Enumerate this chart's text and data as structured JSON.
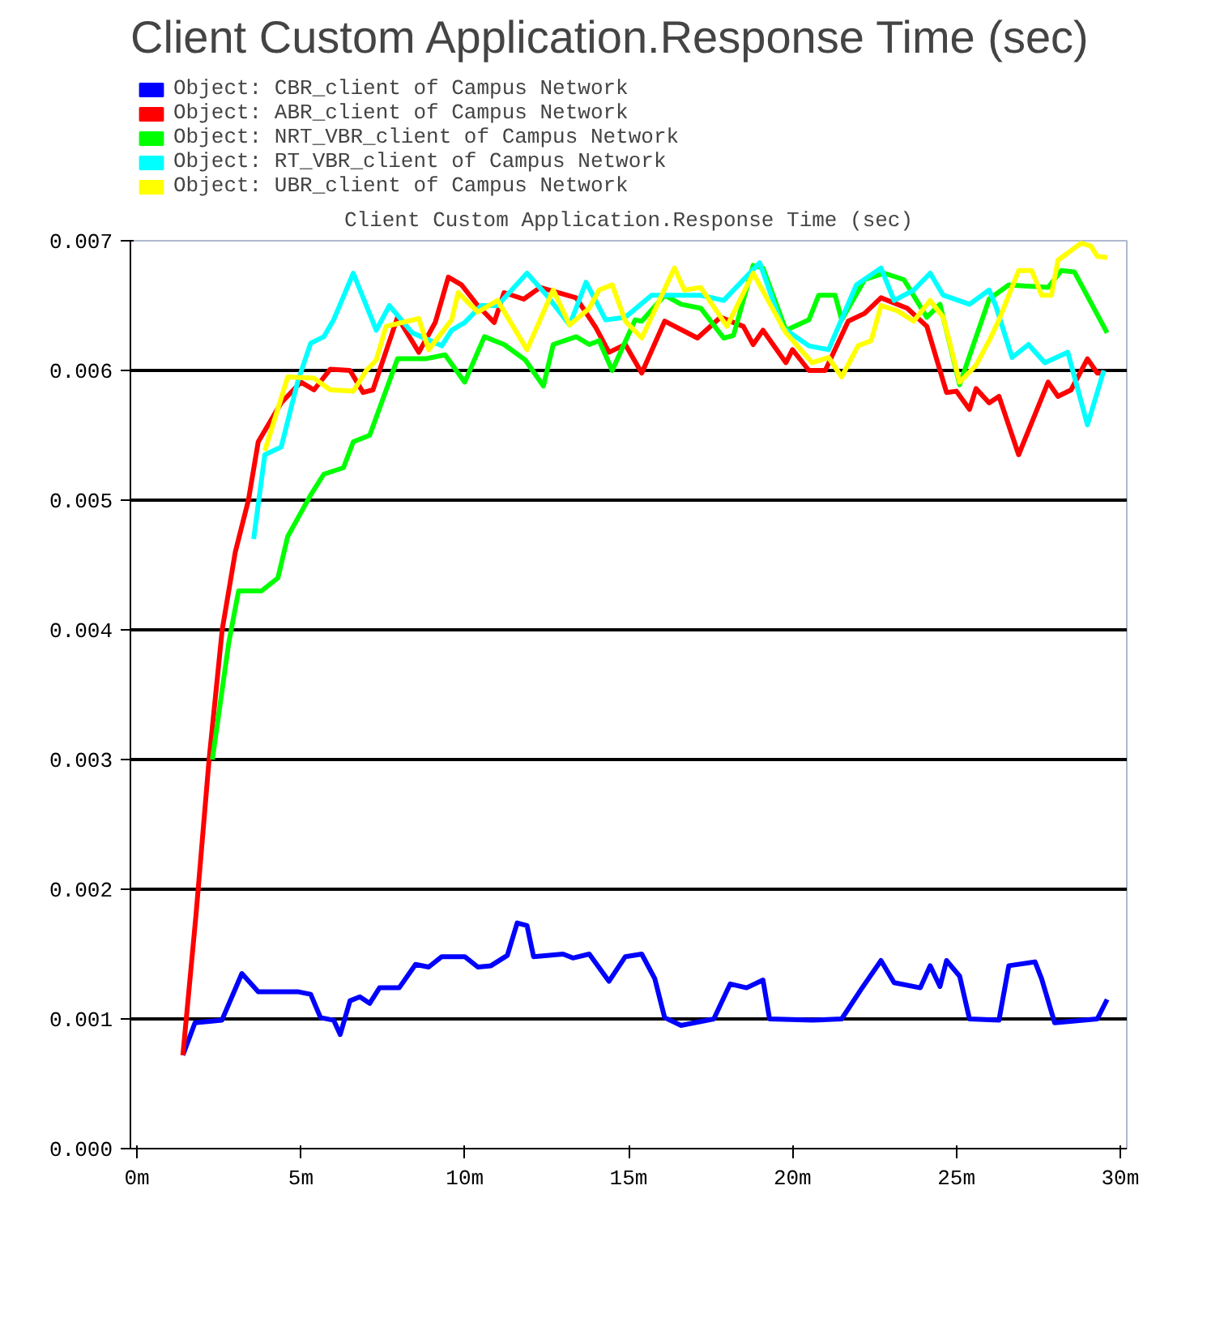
{
  "chart_data": {
    "type": "line",
    "title": "Client Custom Application.Response Time (sec)",
    "subtitle": "Client Custom Application.Response Time (sec)",
    "xlim": [
      -0.2,
      30.2
    ],
    "xticks": [
      {
        "value": 0,
        "label": "0m"
      },
      {
        "value": 5,
        "label": "5m"
      },
      {
        "value": 10,
        "label": "10m"
      },
      {
        "value": 15,
        "label": "15m"
      },
      {
        "value": 20,
        "label": "20m"
      },
      {
        "value": 25,
        "label": "25m"
      },
      {
        "value": 30,
        "label": "30m"
      }
    ],
    "ylim": [
      0,
      0.007
    ],
    "yticks": [
      {
        "value": 0,
        "label": "0.000"
      },
      {
        "value": 0.001,
        "label": "0.001"
      },
      {
        "value": 0.002,
        "label": "0.002"
      },
      {
        "value": 0.003,
        "label": "0.003"
      },
      {
        "value": 0.004,
        "label": "0.004"
      },
      {
        "value": 0.005,
        "label": "0.005"
      },
      {
        "value": 0.006,
        "label": "0.006"
      },
      {
        "value": 0.007,
        "label": "0.007"
      }
    ],
    "grid": "y",
    "legend": "top",
    "line_style": "solid",
    "series": [
      {
        "name": "Object: CBR_client of Campus Network",
        "color": "#0000ff",
        "x": [
          1.4,
          1.77,
          2.59,
          3.2,
          3.7,
          4.9,
          5.3,
          5.6,
          6.0,
          6.2,
          6.5,
          6.8,
          7.1,
          7.4,
          8.0,
          8.5,
          8.9,
          9.3,
          10.0,
          10.4,
          10.8,
          11.3,
          11.6,
          11.9,
          12.1,
          13.0,
          13.3,
          13.8,
          14.4,
          14.9,
          15.4,
          15.8,
          16.1,
          16.6,
          17.6,
          18.1,
          18.6,
          19.1,
          19.3,
          20.6,
          21.5,
          22.1,
          22.7,
          23.1,
          23.9,
          24.2,
          24.5,
          24.7,
          25.1,
          25.4,
          26.3,
          26.6,
          27.4,
          27.6,
          28.0,
          29.3,
          29.6
        ],
        "values": [
          0.00072,
          0.00097,
          0.00099,
          0.00135,
          0.00121,
          0.00121,
          0.00119,
          0.00101,
          0.00099,
          0.00088,
          0.00114,
          0.00117,
          0.00112,
          0.00124,
          0.00124,
          0.00142,
          0.0014,
          0.00148,
          0.00148,
          0.0014,
          0.00141,
          0.00149,
          0.00174,
          0.00172,
          0.00148,
          0.0015,
          0.00147,
          0.0015,
          0.00129,
          0.00148,
          0.0015,
          0.00131,
          0.00101,
          0.00095,
          0.001,
          0.00127,
          0.00124,
          0.0013,
          0.001,
          0.00099,
          0.001,
          0.00123,
          0.00145,
          0.00128,
          0.00124,
          0.00141,
          0.00125,
          0.00145,
          0.00133,
          0.001,
          0.00099,
          0.00141,
          0.00144,
          0.00131,
          0.00097,
          0.001,
          0.00115
        ]
      },
      {
        "name": "Object: ABR_client of Campus Network",
        "color": "#ff0000",
        "x": [
          1.4,
          1.8,
          2.2,
          2.6,
          3.0,
          3.4,
          3.7,
          4.4,
          5.0,
          5.4,
          5.9,
          6.5,
          6.9,
          7.2,
          7.95,
          8.6,
          9.1,
          9.5,
          9.9,
          10.4,
          10.9,
          11.2,
          11.8,
          12.3,
          13.4,
          14.0,
          14.4,
          14.9,
          15.4,
          16.1,
          17.1,
          17.8,
          18.5,
          18.8,
          19.1,
          19.8,
          20.0,
          20.5,
          21.0,
          21.7,
          22.2,
          22.7,
          23.5,
          24.1,
          24.7,
          25.0,
          25.4,
          25.6,
          26.0,
          26.3,
          26.9,
          27.8,
          28.1,
          28.5,
          29.0,
          29.3,
          29.5
        ],
        "values": [
          0.00072,
          0.0018,
          0.003,
          0.004,
          0.0046,
          0.005,
          0.00545,
          0.00575,
          0.00591,
          0.00585,
          0.00601,
          0.006,
          0.00583,
          0.00585,
          0.00641,
          0.00614,
          0.00637,
          0.00672,
          0.00666,
          0.0065,
          0.00637,
          0.0066,
          0.00655,
          0.00664,
          0.00656,
          0.00633,
          0.00614,
          0.0062,
          0.00598,
          0.00638,
          0.00625,
          0.00641,
          0.00634,
          0.0062,
          0.00631,
          0.00606,
          0.00616,
          0.006,
          0.006,
          0.00638,
          0.00644,
          0.00656,
          0.00648,
          0.00634,
          0.00583,
          0.00584,
          0.0057,
          0.00586,
          0.00575,
          0.0058,
          0.00535,
          0.00591,
          0.0058,
          0.00585,
          0.00609,
          0.00598,
          0.00598
        ]
      },
      {
        "name": "Object: NRT_VBR_client of Campus Network",
        "color": "#00ff00",
        "x": [
          2.3,
          2.8,
          3.1,
          3.8,
          4.3,
          4.6,
          5.3,
          5.7,
          6.3,
          6.6,
          7.1,
          7.95,
          8.8,
          9.4,
          10.0,
          10.6,
          11.2,
          11.85,
          12.4,
          12.7,
          13.4,
          13.8,
          14.1,
          14.5,
          15.2,
          15.4,
          16.1,
          16.6,
          17.2,
          17.9,
          18.2,
          18.8,
          19.1,
          19.8,
          20.5,
          20.8,
          21.3,
          21.5,
          22.2,
          22.8,
          23.4,
          24.1,
          24.5,
          25.1,
          26.0,
          26.6,
          27.8,
          28.2,
          28.6,
          29.6
        ],
        "values": [
          0.003,
          0.0039,
          0.0043,
          0.0043,
          0.0044,
          0.00472,
          0.00504,
          0.0052,
          0.00525,
          0.00545,
          0.0055,
          0.00609,
          0.00609,
          0.00612,
          0.00591,
          0.00626,
          0.0062,
          0.00608,
          0.00588,
          0.0062,
          0.00626,
          0.0062,
          0.00623,
          0.006,
          0.00639,
          0.00638,
          0.00658,
          0.00651,
          0.00648,
          0.00625,
          0.00627,
          0.00681,
          0.00679,
          0.00631,
          0.00639,
          0.00658,
          0.00658,
          0.00639,
          0.0067,
          0.00675,
          0.0067,
          0.00641,
          0.00651,
          0.00589,
          0.00655,
          0.00666,
          0.00664,
          0.00677,
          0.00676,
          0.00629
        ]
      },
      {
        "name": "Object: RT_VBR_client of Campus Network",
        "color": "#00ffff",
        "x": [
          3.56,
          3.9,
          4.4,
          4.9,
          5.3,
          5.7,
          6.0,
          6.6,
          7.3,
          7.7,
          8.4,
          9.3,
          9.6,
          10.0,
          10.5,
          11.0,
          11.9,
          12.5,
          13.2,
          13.7,
          14.3,
          14.9,
          15.7,
          16.4,
          17.2,
          17.9,
          19.0,
          19.7,
          20.5,
          21.1,
          21.95,
          22.7,
          23.1,
          23.7,
          24.2,
          24.6,
          25.4,
          26.0,
          26.2,
          26.7,
          27.2,
          27.7,
          28.4,
          29.0,
          29.5
        ],
        "values": [
          0.0047,
          0.00535,
          0.00541,
          0.00591,
          0.00621,
          0.00626,
          0.00639,
          0.00675,
          0.00631,
          0.0065,
          0.00629,
          0.00619,
          0.00631,
          0.00637,
          0.0065,
          0.0065,
          0.00675,
          0.00658,
          0.00635,
          0.00668,
          0.00639,
          0.00641,
          0.00658,
          0.00658,
          0.00658,
          0.00654,
          0.00683,
          0.00633,
          0.00619,
          0.00616,
          0.00666,
          0.00679,
          0.00654,
          0.00662,
          0.00675,
          0.00658,
          0.00651,
          0.00662,
          0.0065,
          0.0061,
          0.0062,
          0.00606,
          0.00614,
          0.00558,
          0.006
        ]
      },
      {
        "name": "Object: UBR_client of Campus Network",
        "color": "#ffff00",
        "x": [
          3.9,
          4.6,
          5.4,
          5.9,
          6.6,
          7.0,
          7.3,
          7.6,
          8.6,
          8.9,
          9.6,
          9.8,
          10.4,
          11.0,
          11.9,
          12.7,
          13.2,
          13.8,
          14.1,
          14.5,
          14.9,
          15.4,
          16.4,
          16.7,
          17.2,
          18.0,
          18.8,
          19.8,
          20.6,
          21.1,
          21.5,
          22.0,
          22.4,
          22.7,
          23.2,
          23.7,
          24.2,
          24.6,
          25.1,
          25.6,
          26.0,
          26.3,
          26.9,
          27.3,
          27.6,
          27.9,
          28.1,
          28.8,
          29.1,
          29.3,
          29.6
        ],
        "values": [
          0.00538,
          0.00595,
          0.00594,
          0.00585,
          0.00584,
          0.006,
          0.00608,
          0.00634,
          0.0064,
          0.00616,
          0.00639,
          0.0066,
          0.00645,
          0.00654,
          0.00616,
          0.00662,
          0.00635,
          0.00648,
          0.00662,
          0.00666,
          0.00638,
          0.00625,
          0.00679,
          0.00662,
          0.00664,
          0.00634,
          0.00675,
          0.00629,
          0.00606,
          0.0061,
          0.00595,
          0.00619,
          0.00623,
          0.0065,
          0.00646,
          0.00638,
          0.00654,
          0.00641,
          0.00591,
          0.00604,
          0.00623,
          0.00639,
          0.00677,
          0.00677,
          0.00658,
          0.00658,
          0.00685,
          0.00698,
          0.00696,
          0.00688,
          0.00687
        ]
      }
    ]
  }
}
